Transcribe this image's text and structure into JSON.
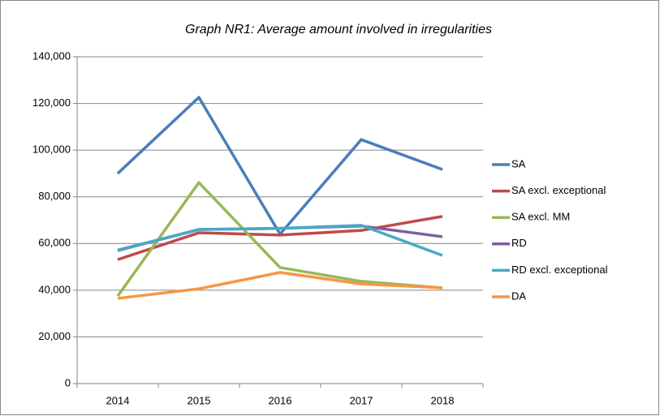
{
  "chart_data": {
    "type": "line",
    "title": "Graph NR1: Average amount involved in irregularities",
    "categories": [
      "2014",
      "2015",
      "2016",
      "2017",
      "2018"
    ],
    "series": [
      {
        "name": "SA",
        "color": "#4a7ebb",
        "values": [
          90000,
          122600,
          64000,
          104500,
          91700
        ]
      },
      {
        "name": "SA excl. exceptional",
        "color": "#be4b48",
        "values": [
          53100,
          64600,
          63600,
          65600,
          71600
        ]
      },
      {
        "name": "SA excl. MM",
        "color": "#98b954",
        "values": [
          37500,
          86100,
          49700,
          43800,
          41000
        ]
      },
      {
        "name": "RD",
        "color": "#7d60a0",
        "values": [
          57000,
          66000,
          66500,
          67500,
          62900
        ]
      },
      {
        "name": "RD excl. exceptional",
        "color": "#46aac5",
        "values": [
          57200,
          66000,
          66500,
          67800,
          54900
        ]
      },
      {
        "name": "DA",
        "color": "#f79646",
        "values": [
          36500,
          40600,
          47600,
          42700,
          41000
        ]
      }
    ],
    "ylim": [
      0,
      140000
    ],
    "yticks": [
      0,
      {
        "value": 20000,
        "label": "20,000"
      },
      {
        "value": 40000,
        "label": "40,000"
      },
      {
        "value": 60000,
        "label": "60,000"
      },
      {
        "value": 80000,
        "label": "80,000"
      },
      {
        "value": 100000,
        "label": "100,000"
      },
      {
        "value": 120000,
        "label": "120,000"
      },
      {
        "value": 140000,
        "label": "140,000"
      }
    ],
    "grid": true,
    "legend": "right"
  }
}
